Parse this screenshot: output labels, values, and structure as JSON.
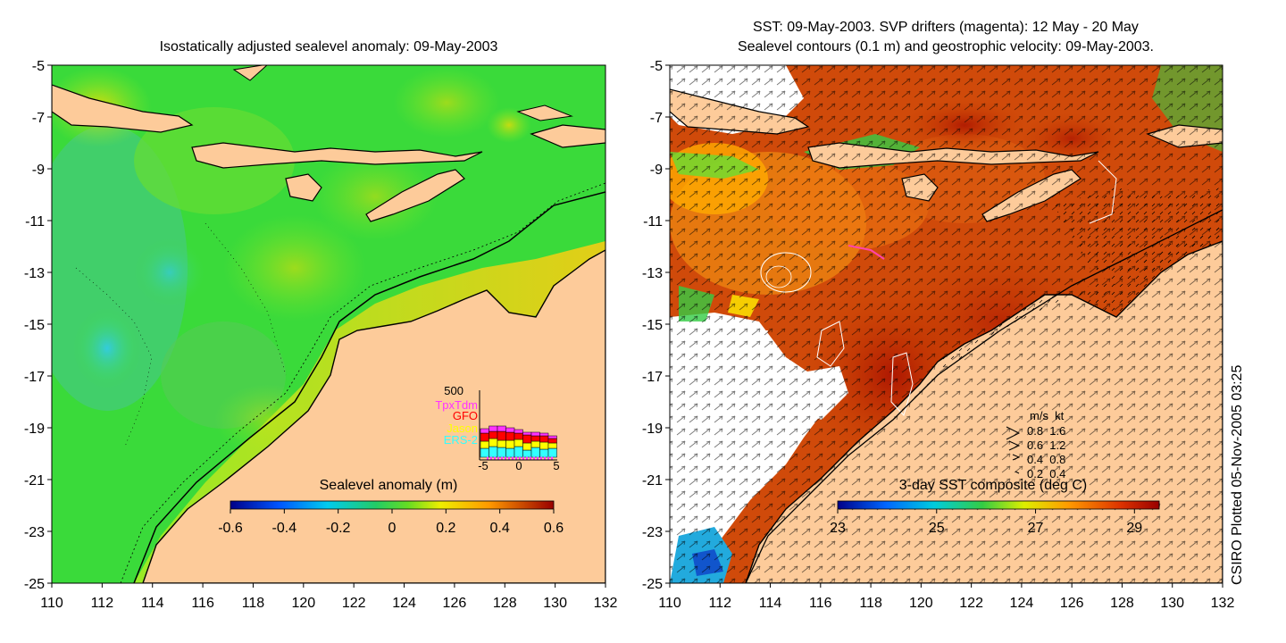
{
  "left_panel": {
    "title": "Isostatically adjusted sealevel anomaly: 09-May-2003",
    "colorbar": {
      "label": "Sealevel anomaly (m)",
      "ticks": [
        "-0.6",
        "-0.4",
        "-0.2",
        "0",
        "0.2",
        "0.4",
        "0.6"
      ],
      "range": [
        -0.6,
        0.6
      ]
    },
    "inset": {
      "y_tick": "500",
      "x_ticks": [
        "-5",
        "0",
        "5"
      ],
      "missions": [
        {
          "name": "TpxTdm",
          "color": "#ff33ff"
        },
        {
          "name": "GFO",
          "color": "#ff0000"
        },
        {
          "name": "Jason",
          "color": "#ffff00"
        },
        {
          "name": "ERS-2",
          "color": "#33ffff"
        }
      ]
    }
  },
  "right_panel": {
    "title_line1": "SST: 09-May-2003. SVP drifters (magenta): 12 May - 20 May",
    "title_line2": "Sealevel contours (0.1 m) and geostrophic velocity: 09-May-2003.",
    "colorbar": {
      "label": "3-day SST composite (deg C)",
      "ticks": [
        "23",
        "25",
        "27",
        "29"
      ],
      "range": [
        23,
        29.5
      ]
    },
    "velocity_legend": {
      "header": "m/s  kt",
      "rows": [
        "0.8  1.6",
        "0.6  1.2",
        "0.4  0.8",
        "0.2  0.4"
      ]
    }
  },
  "axes": {
    "y_ticks": [
      "-5",
      "-7",
      "-9",
      "-11",
      "-13",
      "-15",
      "-17",
      "-19",
      "-21",
      "-23",
      "-25"
    ],
    "x_ticks": [
      "110",
      "112",
      "114",
      "116",
      "118",
      "120",
      "122",
      "124",
      "126",
      "128",
      "130",
      "132"
    ],
    "lon_range": [
      110,
      132
    ],
    "lat_range": [
      -25,
      -5
    ]
  },
  "credit": "CSIRO Plotted 05-Nov-2005 03:25",
  "colors": {
    "land": "#fdcb9a",
    "ocean_sla": "#33dd33",
    "ocean_sst": "#cc4400",
    "coast": "#000000"
  }
}
